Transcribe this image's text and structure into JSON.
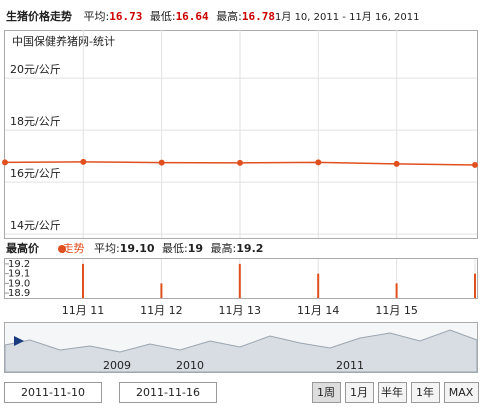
{
  "header": {
    "title": "生猪价格走势",
    "avg_label": "平均:",
    "avg": "16.73",
    "min_label": "最低:",
    "min": "16.64",
    "max_label": "最高:",
    "max": "16.78",
    "range": "1月 10, 2011 - 11月 16, 2011"
  },
  "chart_data": [
    {
      "type": "line",
      "subtitle": "中国保健养猪网-统计",
      "categories": [
        null,
        "11月 11",
        "11月 12",
        "11月 13",
        "11月 14",
        "11月 15",
        null
      ],
      "series": [
        {
          "name": "走势",
          "color": "#e0501e",
          "values": [
            16.76,
            16.78,
            16.75,
            16.74,
            16.76,
            16.7,
            16.66
          ]
        }
      ],
      "ylim": [
        13.85,
        21.85
      ],
      "yticks": [
        {
          "value": 14,
          "label": "14元/公斤"
        },
        {
          "value": 16,
          "label": "16元/公斤"
        },
        {
          "value": 18,
          "label": "18元/公斤"
        },
        {
          "value": 20,
          "label": "20元/公斤"
        }
      ],
      "grid": true
    },
    {
      "type": "bar",
      "title": "最高价",
      "legend": "走势",
      "avg_label": "平均:",
      "avg": "19.10",
      "min_label": "最低:",
      "min": "19",
      "max_label": "最高:",
      "max": "19.2",
      "categories": [
        "11月 11",
        "11月 12",
        "11月 13",
        "11月 14",
        "11月 15",
        null
      ],
      "color": "#e0501e",
      "values": [
        19.2,
        19.0,
        19.2,
        19.1,
        19.0,
        19.1
      ],
      "ylim": [
        18.85,
        19.25
      ],
      "yticks": [
        {
          "value": 18.9,
          "label": "18.9"
        },
        {
          "value": 19,
          "label": "19.0"
        },
        {
          "value": 19.1,
          "label": "19.1"
        },
        {
          "value": 19.2,
          "label": "19.2"
        }
      ]
    }
  ],
  "navigator": {
    "labels": [
      "2009",
      "2010",
      "2011"
    ]
  },
  "controls": {
    "from": "2011-11-10",
    "to": "2011-11-16",
    "buttons": [
      "1周",
      "1月",
      "半年",
      "1年",
      "MAX"
    ]
  }
}
